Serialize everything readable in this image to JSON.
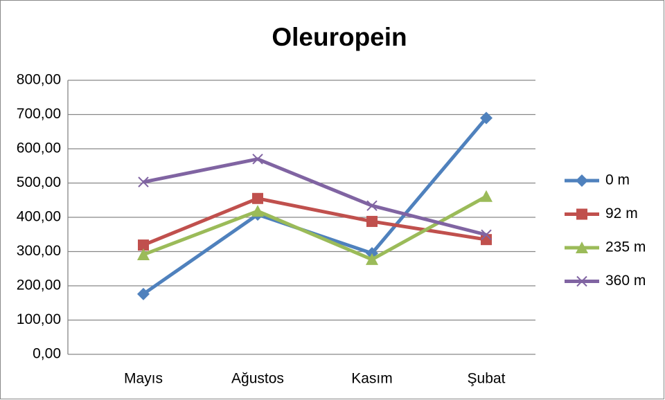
{
  "chart_data": {
    "type": "line",
    "title": "Oleuropein",
    "categories": [
      "Mayıs",
      "Ağustos",
      "Kasım",
      "Şubat"
    ],
    "series": [
      {
        "name": "0 m",
        "color": "#4f81bd",
        "marker": "diamond",
        "values": [
          176,
          408,
          295,
          690
        ]
      },
      {
        "name": "92 m",
        "color": "#c0504d",
        "marker": "square",
        "values": [
          319,
          455,
          388,
          335
        ]
      },
      {
        "name": "235 m",
        "color": "#9bbb59",
        "marker": "triangle",
        "values": [
          291,
          418,
          277,
          461
        ]
      },
      {
        "name": "360 m",
        "color": "#8064a2",
        "marker": "x",
        "values": [
          503,
          570,
          434,
          349
        ]
      }
    ],
    "ylim": [
      0,
      800
    ],
    "yticks": [
      {
        "value": 0,
        "label": "0,00"
      },
      {
        "value": 100,
        "label": "100,00"
      },
      {
        "value": 200,
        "label": "200,00"
      },
      {
        "value": 300,
        "label": "300,00"
      },
      {
        "value": 400,
        "label": "400,00"
      },
      {
        "value": 500,
        "label": "500,00"
      },
      {
        "value": 600,
        "label": "600,00"
      },
      {
        "value": 700,
        "label": "700,00"
      },
      {
        "value": 800,
        "label": "800,00"
      }
    ],
    "grid": true,
    "legend": "right"
  }
}
